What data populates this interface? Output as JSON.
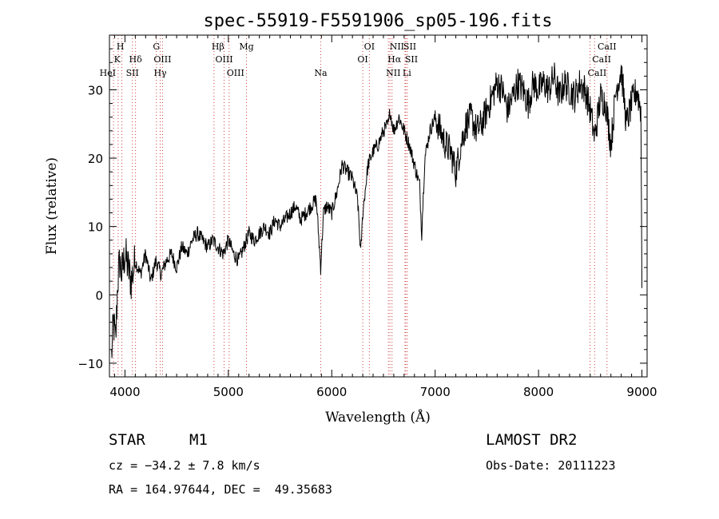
{
  "chart_data": {
    "type": "line",
    "title": "spec-55919-F5591906_sp05-196.fits",
    "xlabel": "Wavelength (Å)",
    "ylabel": "Flux (relative)",
    "xlim": [
      3850,
      9050
    ],
    "ylim": [
      -12,
      38
    ],
    "xticks": [
      4000,
      5000,
      6000,
      7000,
      8000,
      9000
    ],
    "yticks": [
      -10,
      0,
      10,
      20,
      30
    ],
    "grid": false,
    "line_color": "#000000",
    "marker_color": "#d04040",
    "series": [
      {
        "x": [
          3870,
          3890,
          3910,
          3930,
          3950,
          3970,
          4000,
          4030,
          4060,
          4100,
          4150,
          4200,
          4250,
          4300,
          4350,
          4400,
          4450,
          4500,
          4550,
          4600,
          4650,
          4700,
          4750,
          4800,
          4850,
          4900,
          4950,
          5000,
          5050,
          5100,
          5150,
          5200,
          5250,
          5300,
          5350,
          5400,
          5450,
          5500,
          5550,
          5600,
          5650,
          5700,
          5750,
          5800,
          5850,
          5893,
          5920,
          5950,
          6000,
          6050,
          6100,
          6150,
          6200,
          6250,
          6280,
          6300,
          6350,
          6400,
          6450,
          6500,
          6550,
          6563,
          6600,
          6650,
          6700,
          6750,
          6800,
          6850,
          6870,
          6900,
          6950,
          7000,
          7050,
          7100,
          7150,
          7200,
          7250,
          7300,
          7350,
          7400,
          7450,
          7500,
          7550,
          7600,
          7650,
          7700,
          7750,
          7800,
          7850,
          7900,
          7950,
          8000,
          8050,
          8100,
          8150,
          8200,
          8250,
          8300,
          8350,
          8400,
          8450,
          8500,
          8542,
          8600,
          8650,
          8700,
          8750,
          8800,
          8850,
          8900,
          8950,
          8990,
          9000
        ],
        "values": [
          -9,
          -4,
          -7,
          2,
          5,
          3,
          6,
          4,
          2,
          5,
          3,
          6,
          2,
          5,
          3,
          5,
          6,
          4,
          7,
          6,
          8,
          9,
          8,
          7,
          8,
          7,
          6,
          8,
          6,
          5,
          7,
          9,
          8,
          9,
          10,
          9,
          11,
          10,
          11,
          12,
          13,
          11,
          12,
          13,
          14,
          4,
          12,
          13,
          12,
          15,
          19,
          18,
          17,
          14,
          6,
          12,
          19,
          21,
          22,
          24,
          25,
          27,
          24,
          26,
          24,
          22,
          19,
          16,
          9,
          20,
          24,
          26,
          24,
          22,
          21,
          18,
          22,
          25,
          26,
          24,
          25,
          27,
          29,
          31,
          30,
          27,
          29,
          31,
          30,
          28,
          31,
          30,
          31,
          30,
          32,
          29,
          31,
          30,
          29,
          31,
          30,
          27,
          23,
          29,
          28,
          22,
          30,
          33,
          25,
          28,
          30,
          27,
          1
        ]
      }
    ],
    "lines": [
      {
        "label": "H",
        "x": 3970,
        "row": 0,
        "edge": "right"
      },
      {
        "label": "K",
        "x": 3934,
        "row": 1,
        "edge": "right"
      },
      {
        "label": "HeI",
        "x": 3889,
        "row": 2,
        "edge": "right"
      },
      {
        "label": "Hδ",
        "x": 4102,
        "row": 1,
        "edge": "center"
      },
      {
        "label": "SII",
        "x": 4072,
        "row": 2,
        "edge": "center"
      },
      {
        "label": "G",
        "x": 4304,
        "row": 0,
        "edge": "center"
      },
      {
        "label": "OIII",
        "x": 4363,
        "row": 1,
        "edge": "center"
      },
      {
        "label": "Hγ",
        "x": 4341,
        "row": 2,
        "edge": "center"
      },
      {
        "label": "Hβ",
        "x": 4861,
        "row": 0,
        "edge": "left"
      },
      {
        "label": "OIII",
        "x": 4959,
        "row": 1,
        "edge": "center"
      },
      {
        "label": "OIII",
        "x": 5007,
        "row": 2,
        "edge": "left"
      },
      {
        "label": "Mg",
        "x": 5175,
        "row": 0,
        "edge": "center"
      },
      {
        "label": "Na",
        "x": 5893,
        "row": 2,
        "edge": "center"
      },
      {
        "label": "OI",
        "x": 6364,
        "row": 0,
        "edge": "center"
      },
      {
        "label": "OI",
        "x": 6300,
        "row": 1,
        "edge": "center"
      },
      {
        "label": "NII",
        "x": 6583,
        "row": 0,
        "edge": "left"
      },
      {
        "label": "SII",
        "x": 6716,
        "row": 0,
        "edge": "left"
      },
      {
        "label": "Hα",
        "x": 6563,
        "row": 1,
        "edge": "left"
      },
      {
        "label": "SII",
        "x": 6731,
        "row": 1,
        "edge": "left"
      },
      {
        "label": "NII",
        "x": 6548,
        "row": 2,
        "edge": "left"
      },
      {
        "label": "Li",
        "x": 6708,
        "row": 2,
        "edge": "left"
      },
      {
        "label": "CaII",
        "x": 8662,
        "row": 0,
        "edge": "center"
      },
      {
        "label": "CaII",
        "x": 8542,
        "row": 1,
        "edge": "left"
      },
      {
        "label": "CaII",
        "x": 8498,
        "row": 2,
        "edge": "left"
      }
    ]
  },
  "info": {
    "class": "STAR",
    "subclass": "M1",
    "survey": "LAMOST DR2",
    "cz": "cz = −34.2 ± 7.8 km/s",
    "obs_date": "Obs-Date: 20111223",
    "coords": "RA = 164.97644, DEC =  49.35683"
  }
}
